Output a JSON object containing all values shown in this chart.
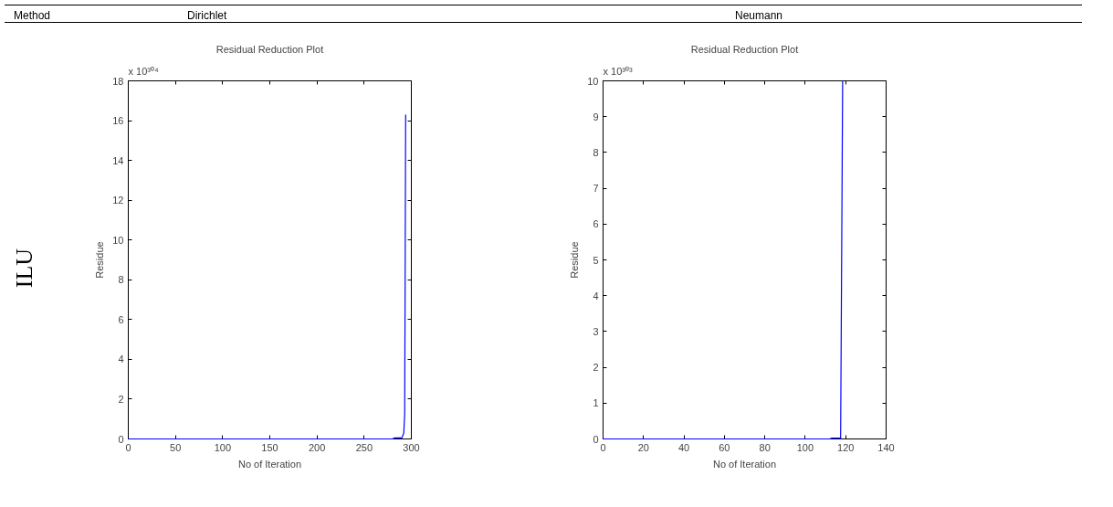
{
  "chart_data": [
    {
      "type": "line",
      "title": "Residual Reduction Plot",
      "xlabel": "No of Iteration",
      "ylabel": "Residue",
      "annotations": [
        "Method",
        "Dirichlet",
        "ILU",
        "x 10³⁰⁴"
      ],
      "x": [
        0,
        280,
        282,
        290,
        292,
        293,
        294
      ],
      "series": [
        {
          "color": "#0000ff",
          "values": [
            0,
            0,
            0.05,
            0.05,
            0.3,
            1.3,
            16.3
          ]
        }
      ],
      "xlim": [
        0,
        300
      ],
      "xticks": [
        0,
        50,
        100,
        150,
        200,
        250,
        300
      ],
      "ylim": [
        0,
        18
      ],
      "yticks": [
        0,
        2,
        4,
        6,
        8,
        10,
        12,
        14,
        16,
        18
      ],
      "grid": false
    },
    {
      "type": "line",
      "title": "Residual Reduction Plot",
      "xlabel": "No of Iteration",
      "ylabel": "Residue",
      "annotations": [
        "Neumann",
        "x 10³⁰³"
      ],
      "x": [
        0,
        112,
        113,
        117.5,
        118.5
      ],
      "series": [
        {
          "color": "#0000ff",
          "values": [
            0,
            0,
            0.02,
            0.02,
            10
          ]
        }
      ],
      "xlim": [
        0,
        140
      ],
      "xticks": [
        0,
        20,
        40,
        60,
        80,
        100,
        120,
        140
      ],
      "ylim": [
        0,
        10
      ],
      "yticks": [
        0,
        1,
        2,
        3,
        4,
        5,
        6,
        7,
        8,
        9,
        10
      ],
      "grid": false
    }
  ]
}
